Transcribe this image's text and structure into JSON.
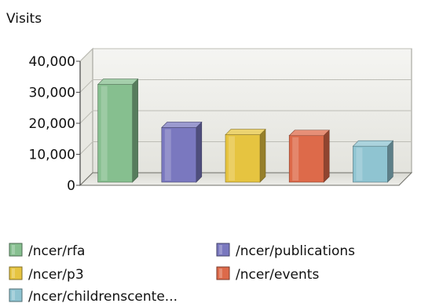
{
  "chart_data": {
    "type": "bar",
    "title": "",
    "ylabel": "Visits",
    "xlabel": "",
    "ylim": [
      0,
      40000
    ],
    "y_ticks": [
      {
        "value": 0,
        "label": "0"
      },
      {
        "value": 10000,
        "label": "10,000"
      },
      {
        "value": 20000,
        "label": "20,000"
      },
      {
        "value": 30000,
        "label": "30,000"
      },
      {
        "value": 40000,
        "label": "40,000"
      }
    ],
    "grid": true,
    "three_d": true,
    "legend_placement": "bottom",
    "categories": [
      "/ncer/rfa",
      "/ncer/publications",
      "/ncer/p3",
      "/ncer/events",
      "/ncer/childrenscente..."
    ],
    "values": [
      31500,
      17600,
      15300,
      15000,
      11600
    ],
    "colors": [
      "#86bf8f",
      "#7a78bf",
      "#e6c440",
      "#dd6a4a",
      "#8fc4d1"
    ]
  }
}
